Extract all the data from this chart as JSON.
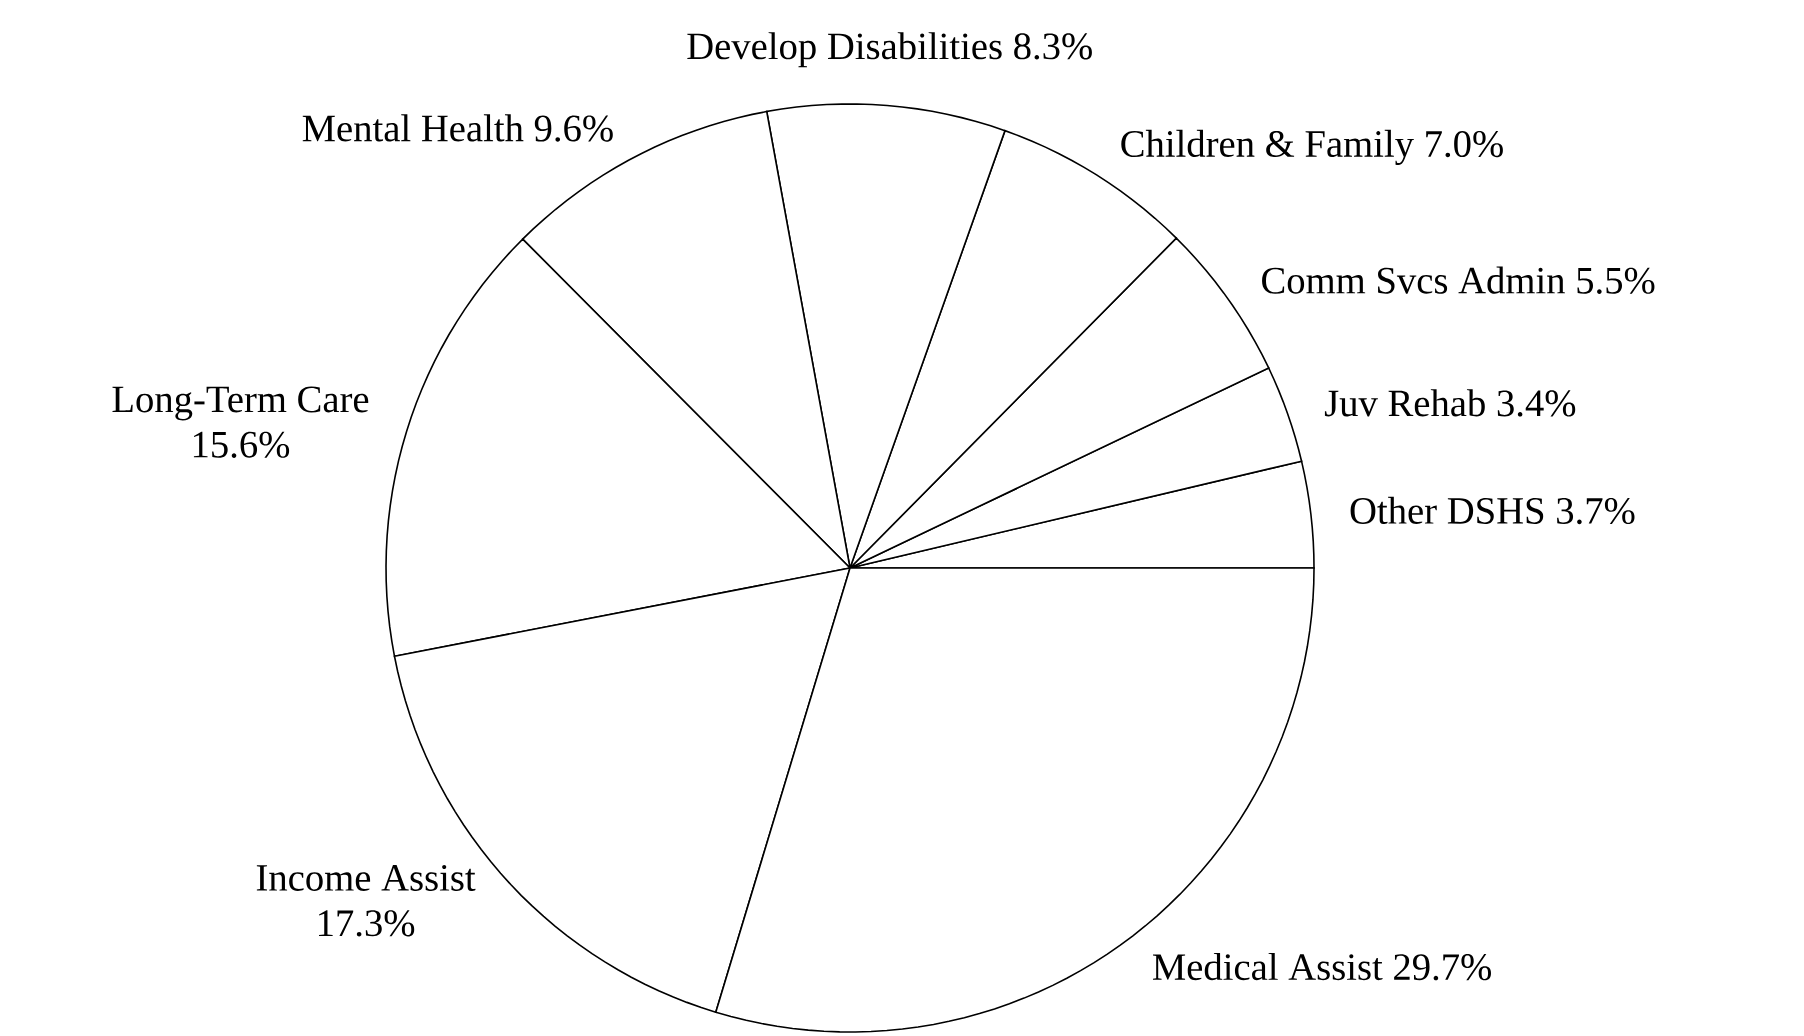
{
  "chart_data": {
    "type": "pie",
    "categories": [
      "Other DSHS",
      "Juv Rehab",
      "Comm Svcs Admin",
      "Children & Family",
      "Develop Disabilities",
      "Mental Health",
      "Long-Term Care",
      "Income Assist",
      "Medical Assist"
    ],
    "values": [
      3.7,
      3.4,
      5.5,
      7.0,
      8.3,
      9.6,
      15.6,
      17.3,
      29.7
    ],
    "value_labels": [
      "3.7%",
      "3.4%",
      "5.5%",
      "7.0%",
      "8.3%",
      "9.6%",
      "15.6%",
      "17.3%",
      "29.7%"
    ],
    "colors": [
      "#ffffff",
      "#ffffff",
      "#ffffff",
      "#ffffff",
      "#ffffff",
      "#ffffff",
      "#ffffff",
      "#ffffff",
      "#ffffff"
    ]
  }
}
